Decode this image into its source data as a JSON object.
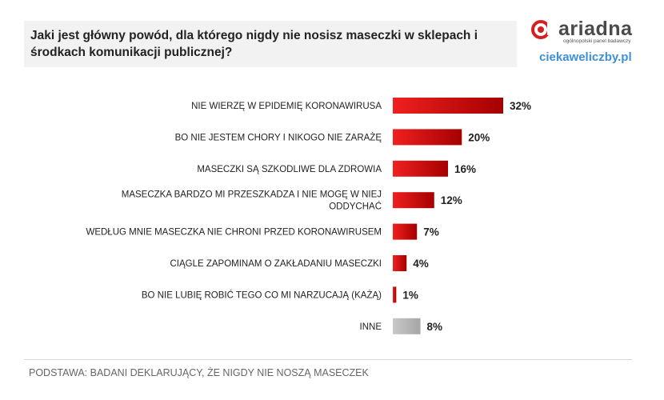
{
  "question": "Jaki jest główny powód, dla którego nigdy nie nosisz maseczki w sklepach i środkach komunikacji publicznej?",
  "brand": {
    "name": "ariadna",
    "tagline": "ogólnopolski panel badawczy",
    "site": "ciekaweliczby.pl"
  },
  "footer": "PODSTAWA: BADANI DEKLARUJĄCY, ŻE NIGDY NIE NOSZĄ MASECZEK",
  "colors": {
    "red_dark": "#a50000",
    "red_light": "#f02020",
    "gray": "#a6a6a6"
  },
  "chart_data": {
    "type": "bar",
    "orientation": "horizontal",
    "categories": [
      [
        "NIE WIERZĘ W EPIDEMIĘ KORONAWIRUSA"
      ],
      [
        "BO NIE JESTEM CHORY I NIKOGO NIE ZARAŻĘ"
      ],
      [
        "MASECZKI SĄ SZKODLIWE DLA ZDROWIA"
      ],
      [
        "MASECZKA BARDZO MI PRZESZKADZA I NIE MOGĘ W NIEJ",
        "ODDYCHAĆ"
      ],
      [
        "WEDŁUG MNIE MASECZKA NIE CHRONI PRZED KORONAWIRUSEM"
      ],
      [
        "CIĄGLE ZAPOMINAM O ZAKŁADANIU MASECZKI"
      ],
      [
        "BO NIE LUBIĘ ROBIĆ TEGO CO MI NARZUCAJĄ (KAŻĄ)"
      ],
      [
        "INNE"
      ]
    ],
    "values": [
      32,
      20,
      16,
      12,
      7,
      4,
      1,
      8
    ],
    "value_labels": [
      "32%",
      "20%",
      "16%",
      "12%",
      "7%",
      "4%",
      "1%",
      "8%"
    ],
    "gray_categories": [
      "INNE"
    ],
    "xlim": [
      0,
      32
    ],
    "grid": false,
    "legend": "none"
  }
}
